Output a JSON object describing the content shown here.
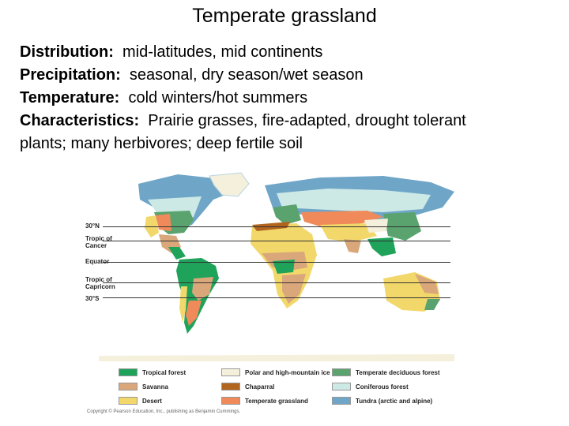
{
  "title": "Temperate grassland",
  "info": [
    {
      "key": "Distribution:",
      "value": "  mid-latitudes, mid continents"
    },
    {
      "key": "Precipitation:",
      "value": "  seasonal, dry season/wet season"
    },
    {
      "key": "Temperature:",
      "value": "  cold winters/hot summers"
    },
    {
      "key": "Characteristics:",
      "value": "  Prairie grasses, fire-adapted, drought tolerant"
    }
  ],
  "info_continuation": "plants; many herbivores; deep fertile soil",
  "map": {
    "lat_labels": {
      "n30": "30°N",
      "cancer": "Tropic of\nCancer",
      "equator": "Equator",
      "capricorn": "Tropic of\nCapricorn",
      "s30": "30°S"
    }
  },
  "legend": [
    {
      "label": "Tropical forest",
      "color": "#1fa35a"
    },
    {
      "label": "Savanna",
      "color": "#d9a77a"
    },
    {
      "label": "Desert",
      "color": "#f2d86a"
    },
    {
      "label": "Polar and high-mountain ice",
      "color": "#f4f0dc"
    },
    {
      "label": "Chaparral",
      "color": "#b2651f"
    },
    {
      "label": "Temperate grassland",
      "color": "#f08a5a"
    },
    {
      "label": "Temperate deciduous forest",
      "color": "#5aa36e"
    },
    {
      "label": "Coniferous forest",
      "color": "#cde9e6"
    },
    {
      "label": "Tundra (arctic and alpine)",
      "color": "#6fa6c8"
    }
  ],
  "copyright": "Copyright © Pearson Education, Inc., publishing as Benjamin Cummings."
}
